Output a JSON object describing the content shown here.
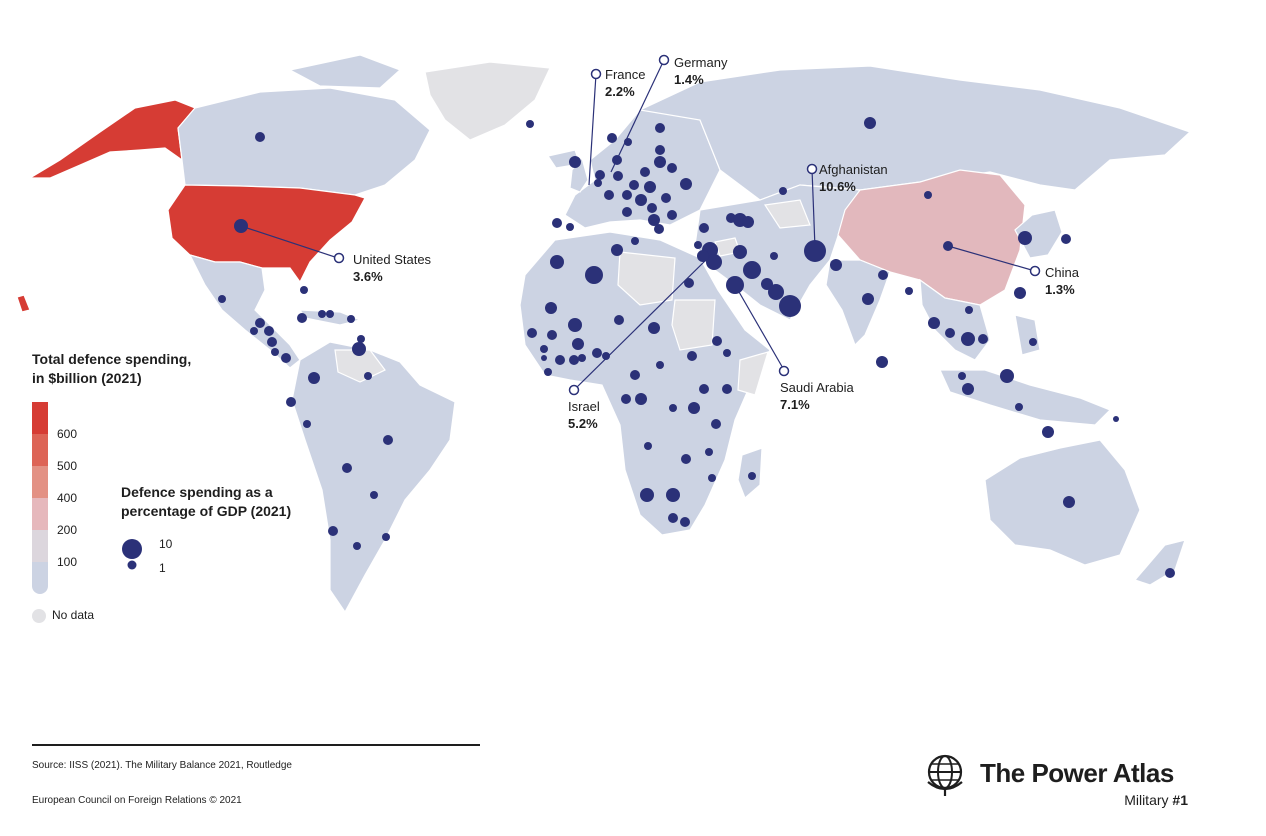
{
  "legend": {
    "total_title_line1": "Total defence spending,",
    "total_title_line2": "in $billion (2021)",
    "scale": [
      {
        "label": "600",
        "color": "#d63c34"
      },
      {
        "label": "500",
        "color": "#dd6456"
      },
      {
        "label": "400",
        "color": "#e39184"
      },
      {
        "label": "200",
        "color": "#e6b8bc"
      },
      {
        "label": "100",
        "color": "#dcd6dd"
      },
      {
        "label": "",
        "color": "#ccd3e3"
      }
    ],
    "pct_title_line1": "Defence spending as a",
    "pct_title_line2": "percentage of GDP (2021)",
    "bubble_big": "10",
    "bubble_small": "1",
    "no_data": "No data",
    "no_data_color": "#e2e2e5",
    "dot_color": "#2b3178"
  },
  "callouts": [
    {
      "country": "United States",
      "value": "3.6%"
    },
    {
      "country": "France",
      "value": "2.2%"
    },
    {
      "country": "Germany",
      "value": "1.4%"
    },
    {
      "country": "Afghanistan",
      "value": "10.6%"
    },
    {
      "country": "China",
      "value": "1.3%"
    },
    {
      "country": "Saudi Arabia",
      "value": "7.1%"
    },
    {
      "country": "Israel",
      "value": "5.2%"
    }
  ],
  "footer": {
    "source": "Source: IISS (2021). The Military Balance 2021, Routledge",
    "copyright": "European Council on Foreign Relations © 2021"
  },
  "brand": {
    "name": "The Power Atlas",
    "issue_prefix": "Military ",
    "issue_number": "#1",
    "icon": "globe-icon"
  }
}
